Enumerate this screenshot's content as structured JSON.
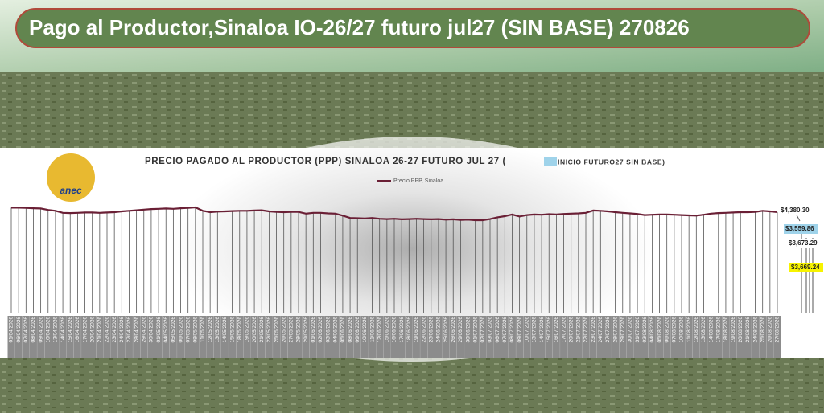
{
  "banner_title": "Pago al Productor,Sinaloa IO-26/27 futuro jul27 (SIN BASE) 270826",
  "logo_text": "anec",
  "chart_data": {
    "type": "line",
    "title": "PRECIO PAGADO AL PRODUCTOR (PPP) SINALOA 26-27 FUTURO JUL 27 (",
    "legend_box": {
      "text": "INICIO FUTURO27 SIN BASE)",
      "color": "#9fd3ea"
    },
    "categories": [
      "01/04/2026",
      "06/04/2026",
      "07/04/2026",
      "08/04/2026",
      "09/04/2026",
      "10/04/2026",
      "13/04/2026",
      "14/04/2026",
      "15/04/2026",
      "16/04/2026",
      "17/04/2026",
      "20/04/2026",
      "21/04/2026",
      "22/04/2026",
      "23/04/2026",
      "24/04/2026",
      "27/04/2026",
      "28/04/2026",
      "29/04/2026",
      "30/04/2026",
      "01/05/2026",
      "04/05/2026",
      "05/05/2026",
      "06/05/2026",
      "07/05/2026",
      "08/05/2026",
      "11/05/2026",
      "12/05/2026",
      "13/05/2026",
      "14/05/2026",
      "15/05/2026",
      "18/05/2026",
      "19/05/2026",
      "20/05/2026",
      "21/05/2026",
      "22/05/2026",
      "25/05/2026",
      "26/05/2026",
      "27/05/2026",
      "28/05/2026",
      "29/05/2026",
      "01/06/2026",
      "02/06/2026",
      "03/06/2026",
      "04/06/2026",
      "05/06/2026",
      "08/06/2026",
      "09/06/2026",
      "10/06/2026",
      "11/06/2026",
      "12/06/2026",
      "15/06/2026",
      "16/06/2026",
      "17/06/2026",
      "18/06/2026",
      "19/06/2026",
      "22/06/2026",
      "23/06/2026",
      "24/06/2026",
      "25/06/2026",
      "26/06/2026",
      "29/06/2026",
      "30/06/2026",
      "01/07/2026",
      "02/07/2026",
      "03/07/2026",
      "06/07/2026",
      "07/07/2026",
      "08/07/2026",
      "09/07/2026",
      "10/07/2026",
      "13/07/2026",
      "14/07/2026",
      "15/07/2026",
      "16/07/2026",
      "17/07/2026",
      "20/07/2026",
      "21/07/2026",
      "22/07/2026",
      "23/07/2026",
      "24/07/2026",
      "27/07/2026",
      "28/07/2026",
      "29/07/2026",
      "30/07/2026",
      "31/07/2026",
      "03/08/2026",
      "04/08/2026",
      "05/08/2026",
      "06/08/2026",
      "07/08/2026",
      "10/08/2026",
      "11/08/2026",
      "12/08/2026",
      "13/08/2026",
      "14/08/2026",
      "17/08/2026",
      "18/08/2026",
      "19/08/2026",
      "20/08/2026",
      "21/08/2026",
      "24/08/2026",
      "25/08/2026",
      "26/08/2026",
      "27/08/2026"
    ],
    "series": [
      {
        "name": "Precio PPP, Sinaloa.",
        "color": "#6a1f35",
        "values": [
          4396,
          4396,
          4395,
          4394,
          4393,
          4388,
          4385,
          4378,
          4377,
          4378,
          4379,
          4379,
          4378,
          4379,
          4380,
          4383,
          4385,
          4387,
          4389,
          4391,
          4392,
          4393,
          4392,
          4394,
          4395,
          4397,
          4385,
          4380,
          4382,
          4383,
          4384,
          4385,
          4385,
          4386,
          4387,
          4383,
          4381,
          4380,
          4381,
          4381,
          4375,
          4378,
          4378,
          4376,
          4375,
          4368,
          4360,
          4359,
          4358,
          4360,
          4357,
          4356,
          4357,
          4355,
          4356,
          4357,
          4356,
          4355,
          4356,
          4354,
          4355,
          4353,
          4354,
          4352,
          4352,
          4356,
          4362,
          4366,
          4372,
          4365,
          4370,
          4372,
          4371,
          4373,
          4372,
          4374,
          4375,
          4376,
          4378,
          4386,
          4385,
          4383,
          4380,
          4378,
          4376,
          4374,
          4370,
          4371,
          4372,
          4372,
          4371,
          4370,
          4369,
          4368,
          4371,
          4375,
          4377,
          4378,
          4379,
          4380,
          4380,
          4381,
          4385,
          4383,
          4380.3
        ]
      }
    ],
    "annotations": [
      {
        "value": 4380.3,
        "label": "$4,380.30",
        "color": "#ffffff"
      },
      {
        "value": 3559.86,
        "label": "$3,559.86",
        "color": "#9fd3ea"
      },
      {
        "value": 3673.29,
        "label": "$3,673.29",
        "color": "#ffffff"
      },
      {
        "value": 3669.24,
        "label": "$3,669.24",
        "color": "#f7f300"
      }
    ]
  }
}
